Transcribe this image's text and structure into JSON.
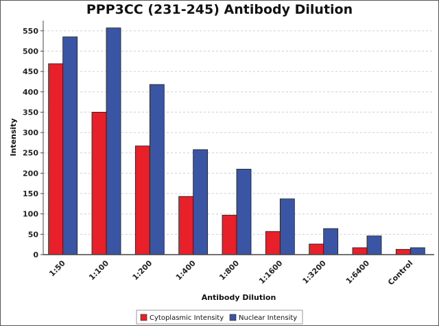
{
  "chart_data": {
    "type": "bar",
    "title": "PPP3CC (231-245) Antibody Dilution",
    "xlabel": "Antibody Dilution",
    "ylabel": "Intensity",
    "categories": [
      "1:50",
      "1:100",
      "1:200",
      "1:400",
      "1:800",
      "1:1600",
      "1:3200",
      "1:6400",
      "Control"
    ],
    "series": [
      {
        "name": "Cytoplasmic Intensity",
        "color": "#e8202a",
        "values": [
          469,
          350,
          267,
          143,
          97,
          57,
          26,
          17,
          13
        ]
      },
      {
        "name": "Nuclear Intensity",
        "color": "#3a55a4",
        "values": [
          535,
          557,
          418,
          258,
          210,
          137,
          64,
          46,
          17
        ]
      }
    ],
    "ylim": [
      0,
      575
    ],
    "yticks": [
      0,
      50,
      100,
      150,
      200,
      250,
      300,
      350,
      400,
      450,
      500,
      550
    ],
    "grid": true,
    "legend_position": "bottom-center"
  }
}
